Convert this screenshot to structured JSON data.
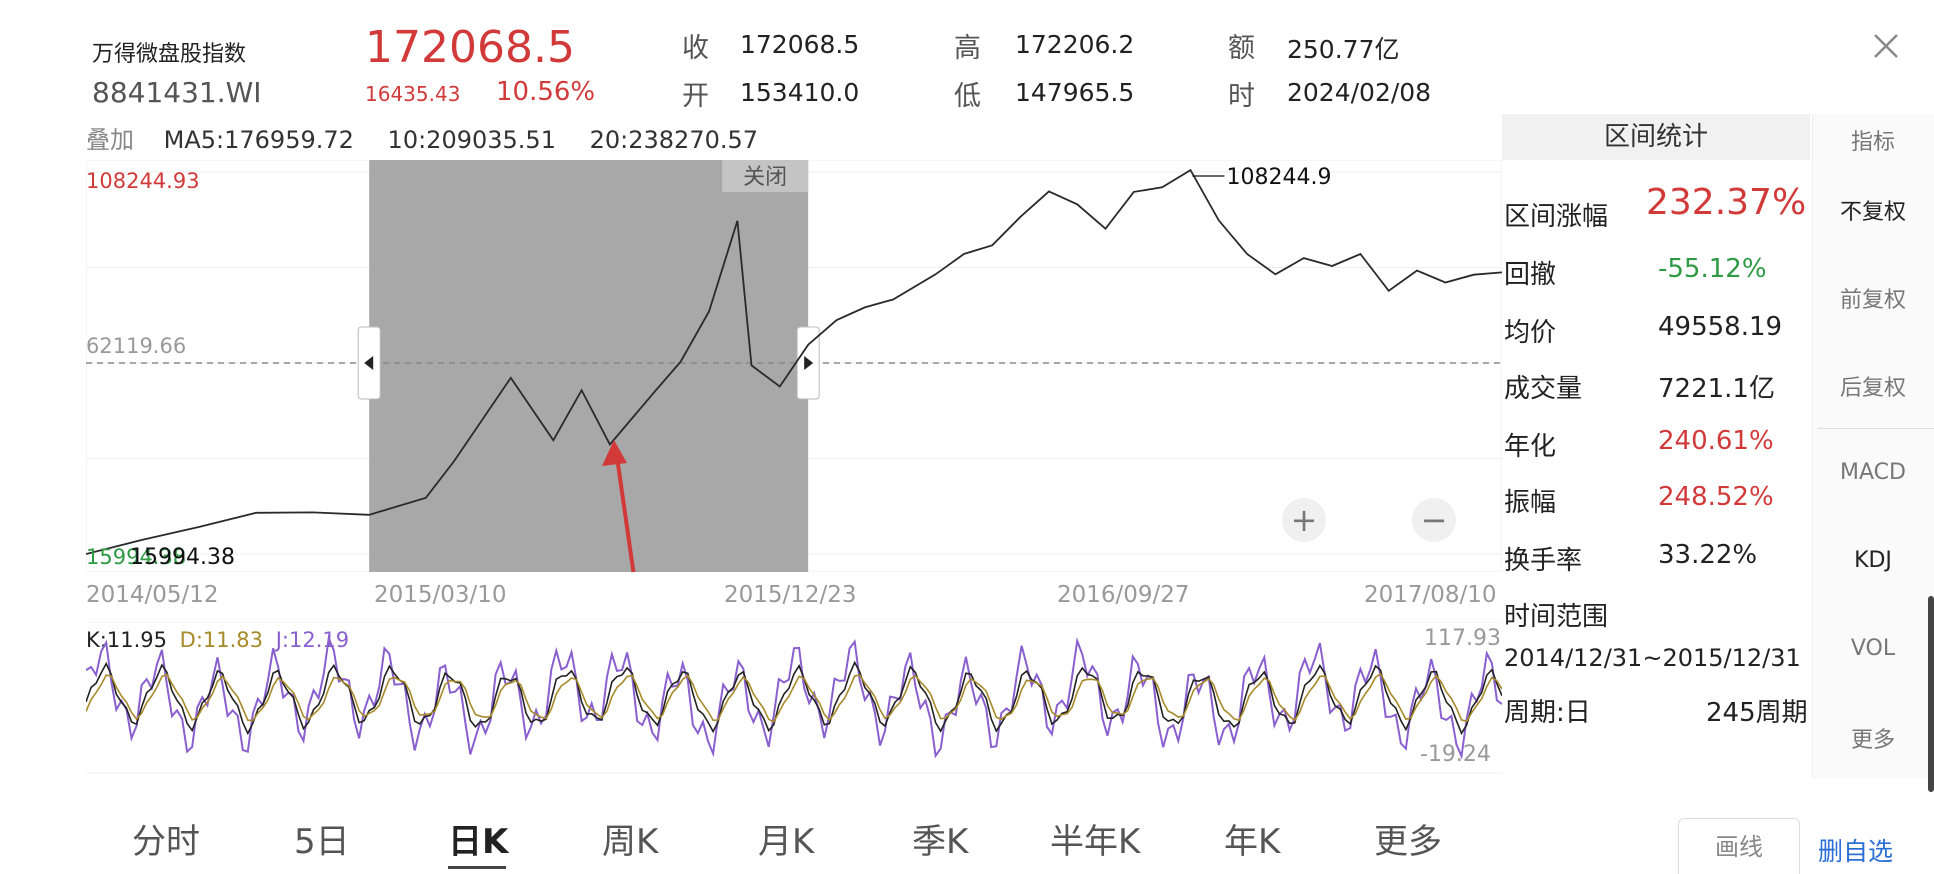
{
  "header": {
    "name": "万得微盘股指数",
    "code": "8841431.WI",
    "price": "172068.5",
    "change": "16435.43",
    "change_pct": "10.56%",
    "close_label": "收",
    "close_value": "172068.5",
    "high_label": "高",
    "high_value": "172206.2",
    "amount_label": "额",
    "amount_value": "250.77亿",
    "open_label": "开",
    "open_value": "153410.0",
    "low_label": "低",
    "low_value": "147965.5",
    "time_label": "时",
    "time_value": "2024/02/08",
    "close_icon": "close-icon"
  },
  "overlay": {
    "label": "叠加",
    "ma5": "MA5:176959.72",
    "ma10": "10:209035.51",
    "ma20": "20:238270.57"
  },
  "chart": {
    "y_top_label": "108244.93",
    "y_mid_label": "62119.66",
    "y_bottom_label": "15994.38",
    "max_marker": "108244.9",
    "low_marker": "15994.38",
    "selection_close": "关闭",
    "x_labels": [
      "2014/05/12",
      "2015/03/10",
      "2015/12/23",
      "2016/09/27",
      "2017/08/10"
    ],
    "accent": "#d23a3a"
  },
  "kdj": {
    "k": "K:11.95",
    "d": "D:11.83",
    "j": "J:12.19",
    "top": "117.93",
    "bottom": "-19.24",
    "colors": {
      "k": "#222222",
      "d": "#a78a2a",
      "j": "#8a5fd0"
    }
  },
  "stats": {
    "title": "区间统计",
    "rows": [
      {
        "label": "区间涨幅",
        "value": "232.37%"
      },
      {
        "label": "回撤",
        "value": "-55.12%"
      },
      {
        "label": "均价",
        "value": "49558.19"
      },
      {
        "label": "成交量",
        "value": "7221.1亿"
      },
      {
        "label": "年化",
        "value": "240.61%"
      },
      {
        "label": "振幅",
        "value": "248.52%"
      },
      {
        "label": "换手率",
        "value": "33.22%"
      }
    ],
    "range_label": "时间范围",
    "range_value": "2014/12/31~2015/12/31",
    "period_label": "周期:日",
    "period_value": "245周期"
  },
  "indicators": {
    "title": "指标",
    "items": [
      "不复权",
      "前复权",
      "后复权",
      "MACD",
      "KDJ",
      "VOL",
      "更多"
    ]
  },
  "tabs": [
    "分时",
    "5日",
    "日K",
    "周K",
    "月K",
    "季K",
    "半年K",
    "年K",
    "更多"
  ],
  "actions": {
    "draw": "画线",
    "remove_fav": "删自选"
  },
  "chart_data": {
    "type": "line",
    "title": "",
    "xlabel": "",
    "ylabel": "",
    "x_tick_labels": [
      "2014/05/12",
      "2015/03/10",
      "2015/12/23",
      "2016/09/27",
      "2017/08/10"
    ],
    "ylim": [
      15994.38,
      108244.93
    ],
    "series": [
      {
        "x": [
          0,
          0.04,
          0.08,
          0.12,
          0.16,
          0.2,
          0.24,
          0.26,
          0.3,
          0.33,
          0.35,
          0.37,
          0.4,
          0.42,
          0.44,
          0.46,
          0.47,
          0.49,
          0.51,
          0.53,
          0.55,
          0.57,
          0.6,
          0.62,
          0.64,
          0.66,
          0.68,
          0.7,
          0.72,
          0.74,
          0.76,
          0.78,
          0.8,
          0.82,
          0.84,
          0.86,
          0.88,
          0.9,
          0.92,
          0.94,
          0.96,
          0.98,
          1.0
        ],
        "values": [
          15994,
          19000,
          23000,
          25500,
          26500,
          25000,
          30000,
          38000,
          59000,
          43000,
          56000,
          42000,
          55000,
          62000,
          75000,
          96000,
          62000,
          56000,
          67000,
          72000,
          76000,
          77000,
          84000,
          88000,
          91000,
          97000,
          104000,
          100000,
          95000,
          103000,
          105000,
          108245,
          97000,
          88000,
          84000,
          87000,
          86000,
          88000,
          80000,
          84000,
          82000,
          83000,
          84000
        ]
      }
    ],
    "selection": {
      "start": "2014/12/31",
      "end": "2015/12/31"
    },
    "reference_line": 62119.66,
    "grid": true,
    "legend": "none"
  }
}
